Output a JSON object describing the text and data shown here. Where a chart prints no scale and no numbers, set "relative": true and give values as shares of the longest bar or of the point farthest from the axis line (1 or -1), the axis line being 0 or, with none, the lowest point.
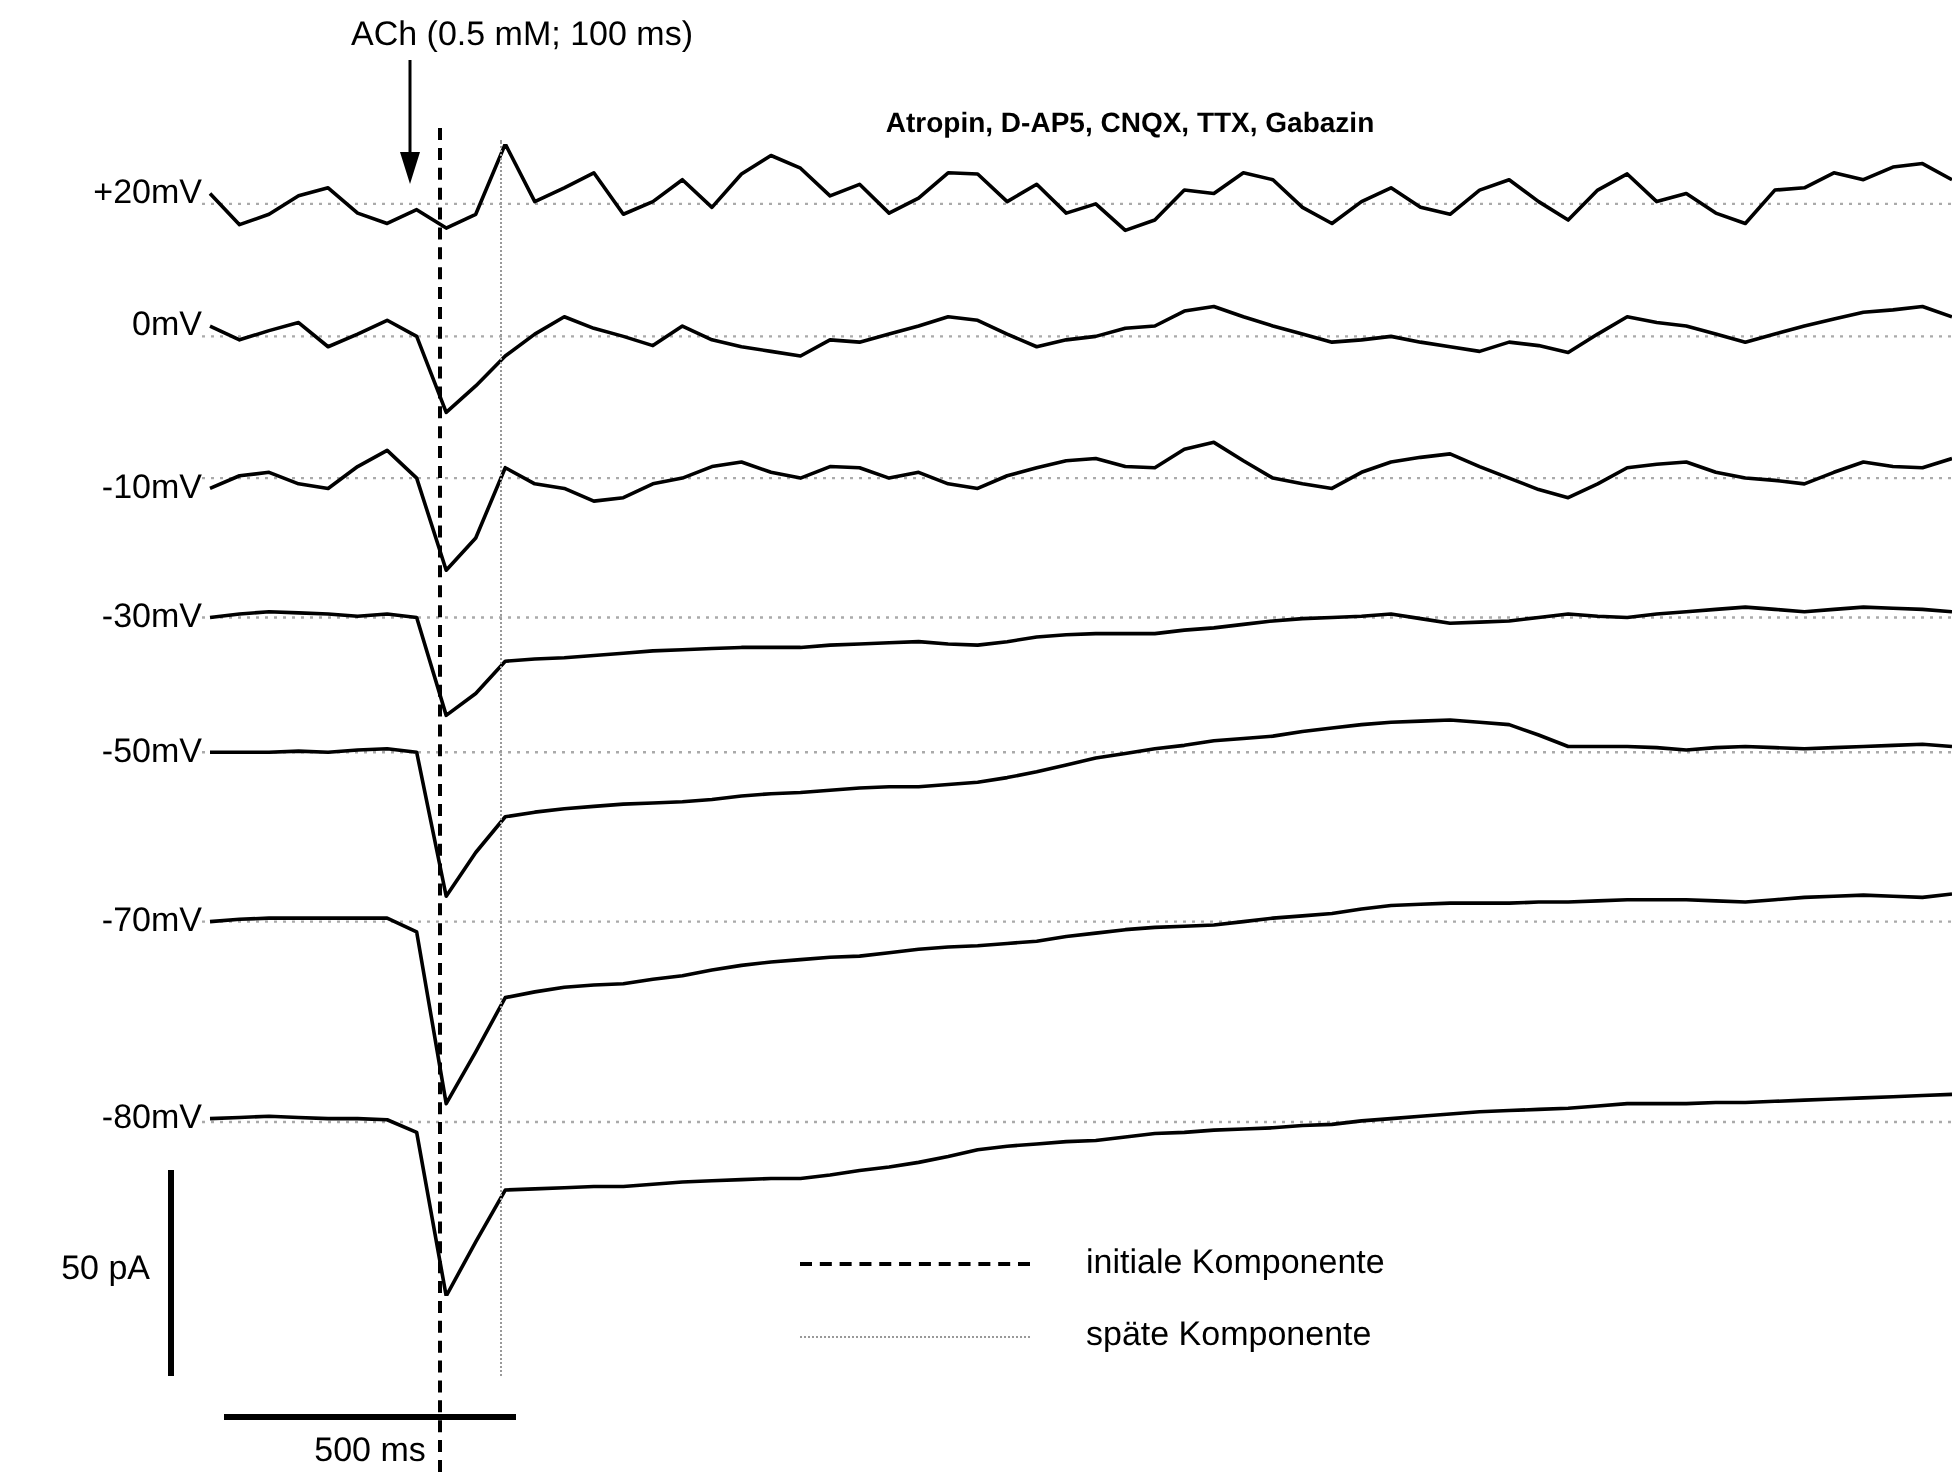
{
  "chart_data": {
    "type": "line",
    "title": "Atropin, D-AP5, CNQX, TTX, Gabazin",
    "relative": true,
    "tick_labels": false,
    "marker": "none",
    "line_style": "solid",
    "categories": [
      null,
      null,
      null,
      null,
      null,
      null,
      null,
      null,
      null,
      null,
      null,
      null,
      null,
      null,
      null,
      null,
      null,
      null,
      null,
      null,
      null,
      null,
      null,
      null,
      null,
      null,
      null,
      null,
      null,
      null,
      null,
      null,
      null,
      null,
      null,
      null,
      null,
      null,
      null,
      null,
      null,
      null,
      null,
      null,
      null,
      null,
      null,
      null,
      null,
      null,
      null,
      null,
      null,
      null,
      null,
      null,
      null,
      null,
      null,
      null
    ],
    "series": [
      {
        "name": "+20mV",
        "color": "#000000",
        "values": [
          0.957,
          0.93,
          0.939,
          0.955,
          0.962,
          0.94,
          0.931,
          0.943,
          0.927,
          0.939,
          1.0,
          0.95,
          0.962,
          0.975,
          0.939,
          0.95,
          0.969,
          0.945,
          0.974,
          0.99,
          0.979,
          0.955,
          0.965,
          0.94,
          0.953,
          0.975,
          0.974,
          0.95,
          0.965,
          0.94,
          0.948,
          0.925,
          0.934,
          0.96,
          0.957,
          0.975,
          0.969,
          0.945,
          0.931,
          0.95,
          0.962,
          0.945,
          0.939,
          0.96,
          0.969,
          0.95,
          0.934,
          0.96,
          0.974,
          0.95,
          0.957,
          0.94,
          0.931,
          0.96,
          0.962,
          0.975,
          0.969,
          0.98,
          0.983,
          0.969
        ]
      },
      {
        "name": "0mV",
        "color": "#000000",
        "values": [
          0.842,
          0.83,
          0.838,
          0.845,
          0.824,
          0.835,
          0.847,
          0.833,
          0.767,
          0.79,
          0.816,
          0.835,
          0.85,
          0.84,
          0.833,
          0.825,
          0.842,
          0.83,
          0.824,
          0.82,
          0.816,
          0.83,
          0.828,
          0.835,
          0.842,
          0.85,
          0.847,
          0.835,
          0.824,
          0.83,
          0.833,
          0.84,
          0.842,
          0.855,
          0.859,
          0.85,
          0.842,
          0.835,
          0.828,
          0.83,
          0.833,
          0.828,
          0.824,
          0.82,
          0.828,
          0.825,
          0.819,
          0.835,
          0.85,
          0.845,
          0.842,
          0.835,
          0.828,
          0.835,
          0.842,
          0.848,
          0.854,
          0.856,
          0.859,
          0.85
        ]
      },
      {
        "name": "-10mV",
        "color": "#000000",
        "values": [
          0.701,
          0.712,
          0.715,
          0.705,
          0.701,
          0.72,
          0.734,
          0.71,
          0.63,
          0.658,
          0.719,
          0.705,
          0.701,
          0.69,
          0.693,
          0.705,
          0.71,
          0.72,
          0.724,
          0.715,
          0.71,
          0.72,
          0.719,
          0.71,
          0.715,
          0.705,
          0.701,
          0.712,
          0.719,
          0.725,
          0.727,
          0.72,
          0.719,
          0.735,
          0.741,
          0.725,
          0.71,
          0.705,
          0.701,
          0.715,
          0.724,
          0.728,
          0.731,
          0.72,
          0.71,
          0.7,
          0.693,
          0.705,
          0.719,
          0.722,
          0.724,
          0.715,
          0.71,
          0.708,
          0.705,
          0.715,
          0.724,
          0.72,
          0.719,
          0.727
        ]
      },
      {
        "name": "-30mV",
        "color": "#000000",
        "values": [
          0.589,
          0.592,
          0.594,
          0.593,
          0.592,
          0.59,
          0.592,
          0.589,
          0.504,
          0.523,
          0.551,
          0.553,
          0.554,
          0.556,
          0.558,
          0.56,
          0.561,
          0.562,
          0.563,
          0.563,
          0.563,
          0.565,
          0.566,
          0.567,
          0.568,
          0.566,
          0.565,
          0.568,
          0.572,
          0.574,
          0.575,
          0.575,
          0.575,
          0.578,
          0.58,
          0.583,
          0.586,
          0.588,
          0.589,
          0.59,
          0.592,
          0.588,
          0.584,
          0.585,
          0.586,
          0.589,
          0.592,
          0.59,
          0.589,
          0.592,
          0.594,
          0.596,
          0.598,
          0.596,
          0.594,
          0.596,
          0.598,
          0.597,
          0.596,
          0.594
        ]
      },
      {
        "name": "-50mV",
        "color": "#000000",
        "values": [
          0.472,
          0.472,
          0.472,
          0.473,
          0.472,
          0.474,
          0.475,
          0.472,
          0.347,
          0.385,
          0.416,
          0.42,
          0.423,
          0.425,
          0.427,
          0.428,
          0.429,
          0.431,
          0.434,
          0.436,
          0.437,
          0.439,
          0.441,
          0.442,
          0.442,
          0.444,
          0.446,
          0.45,
          0.455,
          0.461,
          0.467,
          0.471,
          0.475,
          0.478,
          0.482,
          0.484,
          0.486,
          0.49,
          0.493,
          0.496,
          0.498,
          0.499,
          0.5,
          0.498,
          0.496,
          0.487,
          0.477,
          0.477,
          0.477,
          0.476,
          0.474,
          0.476,
          0.477,
          0.476,
          0.475,
          0.476,
          0.477,
          0.478,
          0.479,
          0.477
        ]
      },
      {
        "name": "-70mV",
        "color": "#000000",
        "values": [
          0.325,
          0.327,
          0.328,
          0.328,
          0.328,
          0.328,
          0.328,
          0.316,
          0.167,
          0.212,
          0.259,
          0.264,
          0.268,
          0.27,
          0.271,
          0.275,
          0.278,
          0.283,
          0.287,
          0.29,
          0.292,
          0.294,
          0.295,
          0.298,
          0.301,
          0.303,
          0.304,
          0.306,
          0.308,
          0.312,
          0.315,
          0.318,
          0.32,
          0.321,
          0.322,
          0.325,
          0.328,
          0.33,
          0.332,
          0.336,
          0.339,
          0.34,
          0.341,
          0.341,
          0.341,
          0.342,
          0.342,
          0.343,
          0.344,
          0.344,
          0.344,
          0.343,
          0.342,
          0.344,
          0.346,
          0.347,
          0.348,
          0.347,
          0.346,
          0.349
        ]
      },
      {
        "name": "-80mV",
        "color": "#000000",
        "values": [
          0.154,
          0.155,
          0.156,
          0.155,
          0.154,
          0.154,
          0.153,
          0.142,
          0,
          0.047,
          0.092,
          0.093,
          0.094,
          0.095,
          0.095,
          0.097,
          0.099,
          0.1,
          0.101,
          0.102,
          0.102,
          0.105,
          0.109,
          0.112,
          0.116,
          0.121,
          0.127,
          0.13,
          0.132,
          0.134,
          0.135,
          0.138,
          0.141,
          0.142,
          0.144,
          0.145,
          0.146,
          0.148,
          0.149,
          0.152,
          0.154,
          0.156,
          0.158,
          0.16,
          0.161,
          0.162,
          0.163,
          0.165,
          0.167,
          0.167,
          0.167,
          0.168,
          0.168,
          0.169,
          0.17,
          0.171,
          0.172,
          0.173,
          0.174,
          0.175
        ]
      }
    ],
    "ref_lines": [
      {
        "axis": "y",
        "value": 0.948,
        "line_style": "dotted",
        "color": "#aaaaaa"
      },
      {
        "axis": "y",
        "value": 0.833,
        "line_style": "dotted",
        "color": "#aaaaaa"
      },
      {
        "axis": "y",
        "value": 0.71,
        "line_style": "dotted",
        "color": "#aaaaaa"
      },
      {
        "axis": "y",
        "value": 0.589,
        "line_style": "dotted",
        "color": "#aaaaaa"
      },
      {
        "axis": "y",
        "value": 0.472,
        "line_style": "dotted",
        "color": "#aaaaaa"
      },
      {
        "axis": "y",
        "value": 0.325,
        "line_style": "dotted",
        "color": "#aaaaaa"
      },
      {
        "axis": "y",
        "value": 0.151,
        "line_style": "dotted",
        "color": "#aaaaaa"
      }
    ],
    "annotations": [
      "ACh (0.5 mM; 100 ms)",
      "50 pA",
      "500 ms",
      "initiale Komponente",
      "späte Komponente"
    ]
  }
}
